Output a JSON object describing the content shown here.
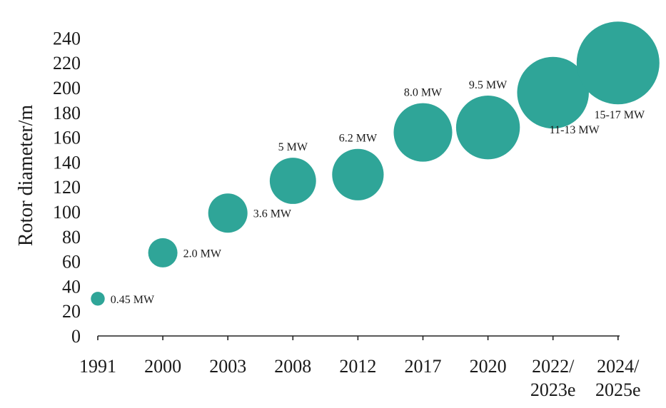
{
  "chart_data": {
    "type": "scatter",
    "title": "",
    "xlabel": "",
    "ylabel": "Rotor diameter/m",
    "ylim": [
      0,
      240
    ],
    "yticks": [
      0,
      20,
      40,
      60,
      80,
      100,
      120,
      140,
      160,
      180,
      200,
      220,
      240
    ],
    "categories": [
      [
        "1991"
      ],
      [
        "2000"
      ],
      [
        "2003"
      ],
      [
        "2008"
      ],
      [
        "2012"
      ],
      [
        "2017"
      ],
      [
        "2020"
      ],
      [
        "2022/",
        "2023e"
      ],
      [
        "2024/",
        "2025e"
      ]
    ],
    "points": [
      {
        "year": "1991",
        "diameter": 30,
        "power_mw": 0.45,
        "label": "0.45 MW"
      },
      {
        "year": "2000",
        "diameter": 67,
        "power_mw": 2.0,
        "label": "2.0 MW"
      },
      {
        "year": "2003",
        "diameter": 99,
        "power_mw": 3.6,
        "label": "3.6 MW"
      },
      {
        "year": "2008",
        "diameter": 125,
        "power_mw": 5,
        "label": "5 MW"
      },
      {
        "year": "2012",
        "diameter": 130,
        "power_mw": 6.2,
        "label": "6.2 MW"
      },
      {
        "year": "2017",
        "diameter": 164,
        "power_mw": 8.0,
        "label": "8.0 MW"
      },
      {
        "year": "2020",
        "diameter": 168,
        "power_mw": 9.5,
        "label": "9.5 MW"
      },
      {
        "year": "2022/2023e",
        "diameter": 196,
        "power_mw": 12,
        "label": "11-13 MW"
      },
      {
        "year": "2024/2025e",
        "diameter": 220,
        "power_mw": 16,
        "label": "15-17 MW"
      }
    ],
    "colors": {
      "bubble": "#2fa598",
      "axis": "#222222",
      "text": "#1a1a1a"
    }
  }
}
